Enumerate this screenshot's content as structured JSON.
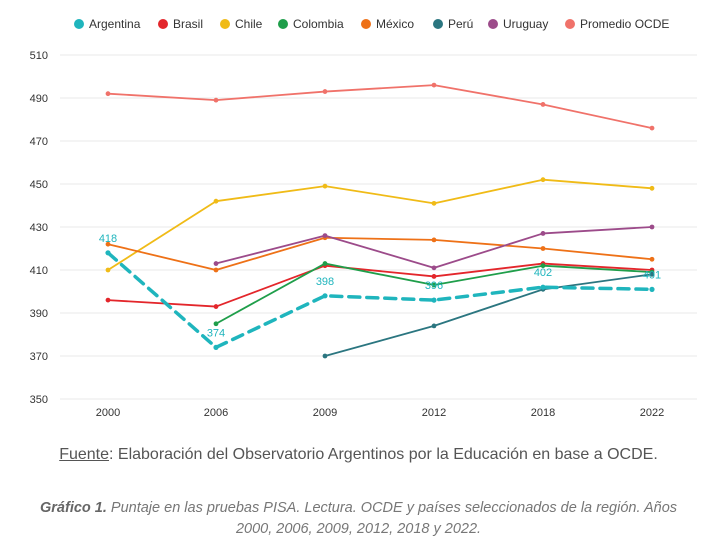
{
  "chart_data": {
    "type": "line",
    "categories": [
      "2000",
      "2006",
      "2009",
      "2012",
      "2018",
      "2022"
    ],
    "ylim": [
      350,
      510
    ],
    "yticks": [
      350,
      370,
      390,
      410,
      430,
      450,
      470,
      490,
      510
    ],
    "grid": true,
    "legend_position": "top",
    "series": [
      {
        "name": "Argentina",
        "color": "#1fb5bd",
        "dashed": true,
        "values": [
          418,
          374,
          398,
          396,
          402,
          401
        ],
        "data_labels": [
          "418",
          "374",
          "398",
          "396",
          "402",
          "401"
        ]
      },
      {
        "name": "Brasil",
        "color": "#e3262b",
        "values": [
          396,
          393,
          412,
          407,
          413,
          410
        ]
      },
      {
        "name": "Chile",
        "color": "#f0bb17",
        "values": [
          410,
          442,
          449,
          441,
          452,
          448
        ]
      },
      {
        "name": "Colombia",
        "color": "#1f9e4a",
        "values": [
          null,
          385,
          413,
          403,
          412,
          409
        ]
      },
      {
        "name": "México",
        "color": "#ee7117",
        "values": [
          422,
          410,
          425,
          424,
          420,
          415
        ]
      },
      {
        "name": "Perú",
        "color": "#2b7680",
        "values": [
          null,
          null,
          370,
          384,
          401,
          408
        ]
      },
      {
        "name": "Uruguay",
        "color": "#9c4b8a",
        "values": [
          null,
          413,
          426,
          411,
          427,
          430
        ]
      },
      {
        "name": "Promedio OCDE",
        "color": "#f0726a",
        "values": [
          492,
          489,
          493,
          496,
          487,
          476
        ]
      }
    ]
  },
  "source": {
    "label": "Fuente",
    "text": ": Elaboración del Observatorio Argentinos por la Educación en base a OCDE."
  },
  "caption": {
    "label": "Gráfico 1.",
    "text": " Puntaje en las pruebas PISA. Lectura. OCDE y países seleccionados de la región. Años 2000, 2006, 2009, 2012, 2018 y 2022."
  }
}
